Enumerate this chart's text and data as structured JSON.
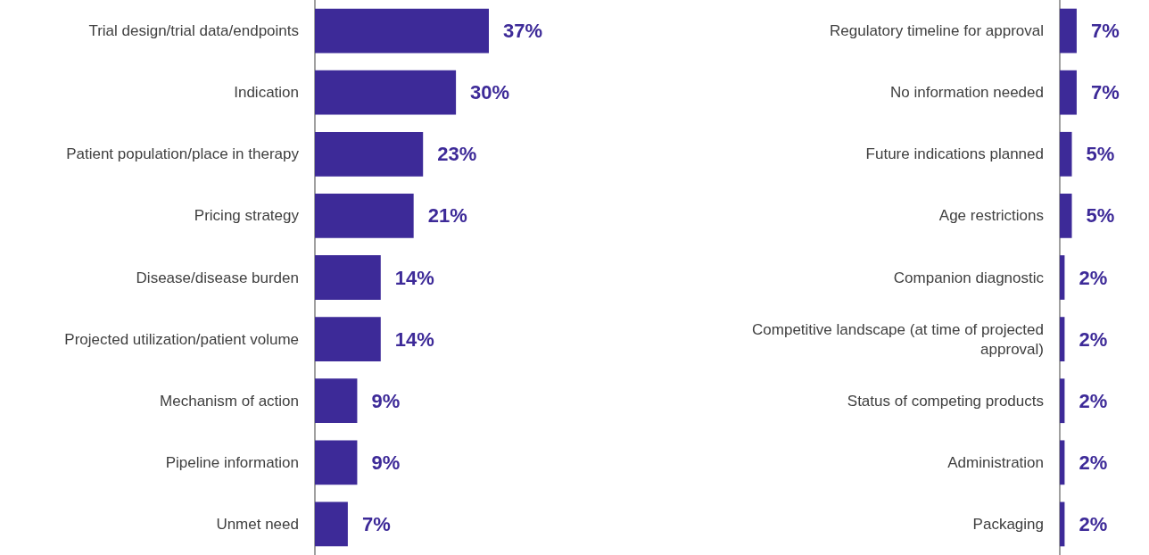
{
  "chart_data": [
    {
      "type": "bar",
      "orientation": "horizontal",
      "tick_labels": "y",
      "color": "#3d2a98",
      "value_labels": [
        "37%",
        "30%",
        "23%",
        "21%",
        "14%",
        "14%",
        "9%",
        "9%",
        "7%"
      ],
      "categories": [
        "Trial design/trial data/endpoints",
        "Indication",
        "Patient population/place in therapy",
        "Pricing strategy",
        "Disease/disease burden",
        "Projected utilization/patient volume",
        "Mechanism of action",
        "Pipeline information",
        "Unmet need"
      ],
      "values": [
        37,
        30,
        23,
        21,
        14,
        14,
        9,
        9,
        7
      ]
    },
    {
      "type": "bar",
      "orientation": "horizontal",
      "tick_labels": "y",
      "color": "#3d2a98",
      "value_labels": [
        "7%",
        "7%",
        "5%",
        "5%",
        "2%",
        "2%",
        "2%",
        "2%",
        "2%"
      ],
      "categories": [
        "Regulatory timeline for approval",
        "No information needed",
        "Future indications planned",
        "Age restrictions",
        "Companion diagnostic",
        "Competitive landscape (at time of projected approval)",
        "Status of competing products",
        "Administration",
        "Packaging"
      ],
      "values": [
        7,
        7,
        5,
        5,
        2,
        2,
        2,
        2,
        2
      ]
    }
  ]
}
